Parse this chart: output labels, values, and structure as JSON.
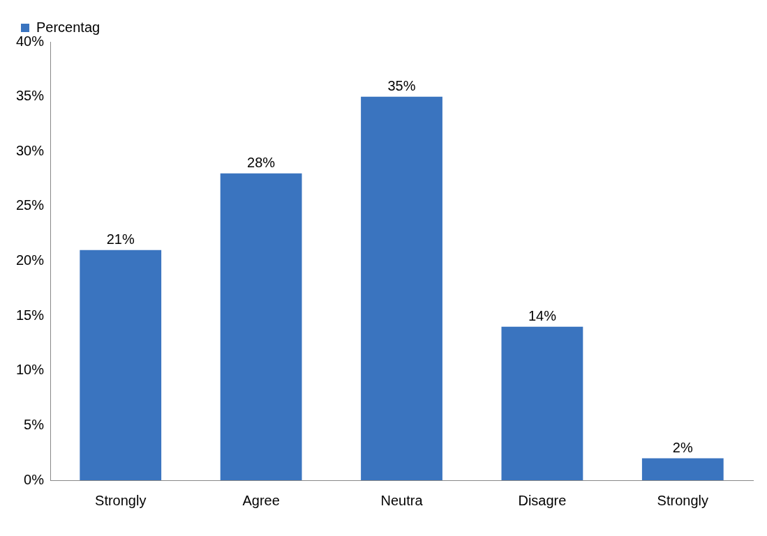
{
  "chart_data": {
    "type": "bar",
    "categories": [
      "Strongly",
      "Agree",
      "Neutra",
      "Disagre",
      "Strongly"
    ],
    "series": [
      {
        "name": "Percentag",
        "color": "#3a74bf",
        "values": [
          21,
          28,
          35,
          14,
          2
        ],
        "value_labels": [
          "21%",
          "28%",
          "35%",
          "14%",
          "2%"
        ]
      }
    ],
    "ylim": [
      0,
      40
    ],
    "yticks": [
      {
        "value": 0,
        "label": "0%"
      },
      {
        "value": 5,
        "label": "5%"
      },
      {
        "value": 10,
        "label": "10%"
      },
      {
        "value": 15,
        "label": "15%"
      },
      {
        "value": 20,
        "label": "20%"
      },
      {
        "value": 25,
        "label": "25%"
      },
      {
        "value": 30,
        "label": "30%"
      },
      {
        "value": 35,
        "label": "35%"
      },
      {
        "value": 40,
        "label": "40%"
      }
    ],
    "grid": false,
    "legend": "top left"
  }
}
